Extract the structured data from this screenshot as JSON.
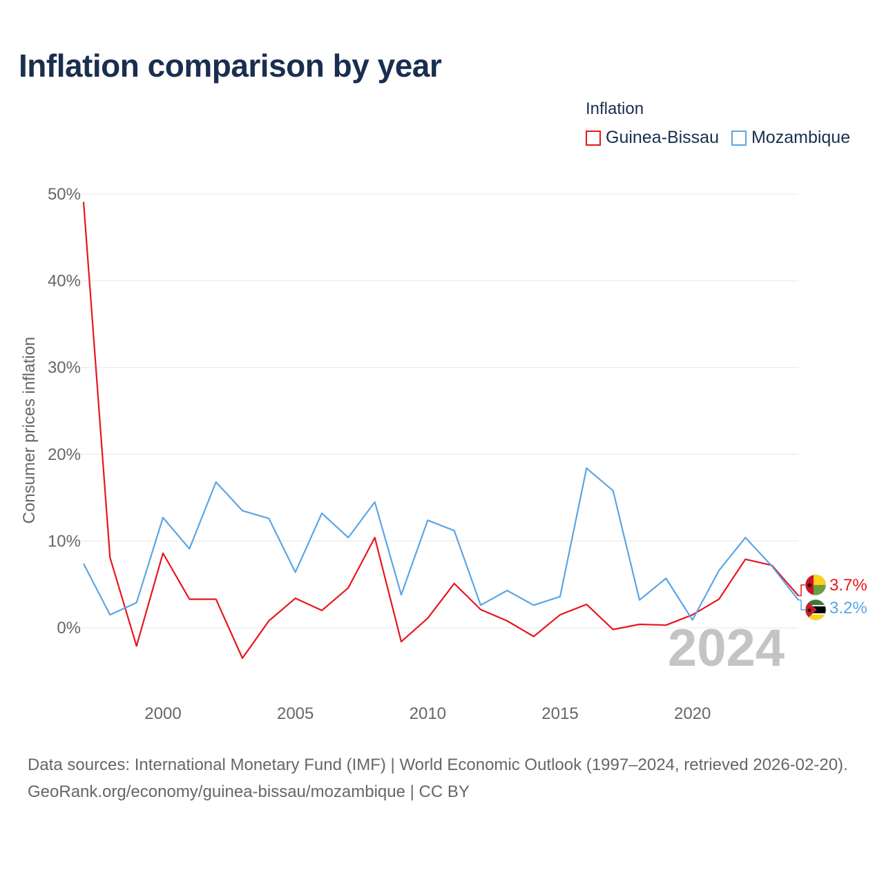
{
  "title": "Inflation comparison by year",
  "legend": {
    "title": "Inflation",
    "items": [
      {
        "label": "Guinea-Bissau",
        "color": "#e8141c"
      },
      {
        "label": "Mozambique",
        "color": "#5aa5e3"
      }
    ]
  },
  "footer": {
    "line1": "Data sources: International Monetary Fund (IMF) | World Economic Outlook (1997–2024, retrieved 2026-02-20).",
    "line2": "GeoRank.org/economy/guinea-bissau/mozambique | CC BY"
  },
  "chart_data": {
    "type": "line",
    "ylabel": "Consumer prices inflation",
    "xlabel": "",
    "ylim": [
      -8,
      50
    ],
    "xlim": [
      1997,
      2024
    ],
    "y_ticks": [
      0,
      10,
      20,
      30,
      40,
      50
    ],
    "y_tick_labels": [
      "0%",
      "10%",
      "20%",
      "30%",
      "40%",
      "50%"
    ],
    "x_ticks": [
      2000,
      2005,
      2010,
      2015,
      2020
    ],
    "x_tick_labels": [
      "2000",
      "2005",
      "2010",
      "2015",
      "2020"
    ],
    "year_watermark": "2024",
    "x": [
      1997,
      1998,
      1999,
      2000,
      2001,
      2002,
      2003,
      2004,
      2005,
      2006,
      2007,
      2008,
      2009,
      2010,
      2011,
      2012,
      2013,
      2014,
      2015,
      2016,
      2017,
      2018,
      2019,
      2020,
      2021,
      2022,
      2023,
      2024
    ],
    "series": [
      {
        "name": "Guinea-Bissau",
        "color": "#e8141c",
        "end_label": "3.7%",
        "flag": "guinea-bissau-flag",
        "values": [
          49.1,
          8.1,
          -2.1,
          8.6,
          3.3,
          3.3,
          -3.5,
          0.8,
          3.4,
          2.0,
          4.6,
          10.4,
          -1.6,
          1.1,
          5.1,
          2.1,
          0.8,
          -1.0,
          1.5,
          2.7,
          -0.2,
          0.4,
          0.3,
          1.5,
          3.3,
          7.9,
          7.2,
          3.7
        ]
      },
      {
        "name": "Mozambique",
        "color": "#5aa5e3",
        "end_label": "3.2%",
        "flag": "mozambique-flag",
        "values": [
          7.4,
          1.5,
          2.9,
          12.7,
          9.1,
          16.8,
          13.5,
          12.6,
          6.4,
          13.2,
          10.4,
          14.5,
          3.8,
          12.4,
          11.2,
          2.6,
          4.3,
          2.6,
          3.6,
          18.4,
          15.8,
          3.2,
          5.7,
          0.9,
          6.6,
          10.4,
          7.1,
          3.2
        ]
      }
    ]
  }
}
